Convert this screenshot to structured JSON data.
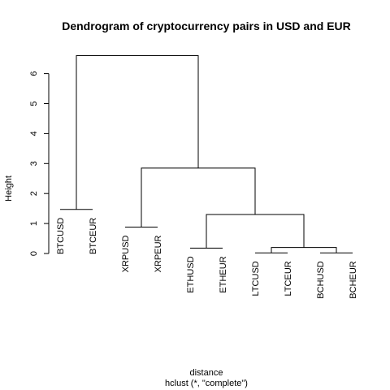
{
  "chart_data": {
    "type": "dendrogram",
    "title": "Dendrogram of cryptocurrency pairs in USD and EUR",
    "xlabel": "distance",
    "sublabel": "hclust (*, \"complete\")",
    "ylabel": "Height",
    "ylim": [
      0,
      6.6
    ],
    "yticks": [
      0,
      1,
      2,
      3,
      4,
      5,
      6
    ],
    "leaves": [
      {
        "label": "BTCUSD",
        "height": 1.47
      },
      {
        "label": "BTCEUR",
        "height": 1.47
      },
      {
        "label": "XRPUSD",
        "height": 0.88
      },
      {
        "label": "XRPEUR",
        "height": 0.88
      },
      {
        "label": "ETHUSD",
        "height": 0.18
      },
      {
        "label": "ETHEUR",
        "height": 0.18
      },
      {
        "label": "LTCUSD",
        "height": 0.02
      },
      {
        "label": "LTCEUR",
        "height": 0.02
      },
      {
        "label": "BCHUSD",
        "height": 0.02
      },
      {
        "label": "BCHEUR",
        "height": 0.02
      }
    ],
    "merges": [
      {
        "left": 7,
        "right": 8,
        "height": 0.02
      },
      {
        "left": 9,
        "right": 10,
        "height": 0.02
      },
      {
        "left": -1,
        "right": -2,
        "height": 0.2
      },
      {
        "left": 5,
        "right": 6,
        "height": 0.18
      },
      {
        "left": -4,
        "right": -3,
        "height": 1.3
      },
      {
        "left": 3,
        "right": 4,
        "height": 0.88
      },
      {
        "left": -6,
        "right": -5,
        "height": 2.85
      },
      {
        "left": 1,
        "right": 2,
        "height": 1.47
      },
      {
        "left": -8,
        "right": -7,
        "height": 6.6
      }
    ]
  }
}
